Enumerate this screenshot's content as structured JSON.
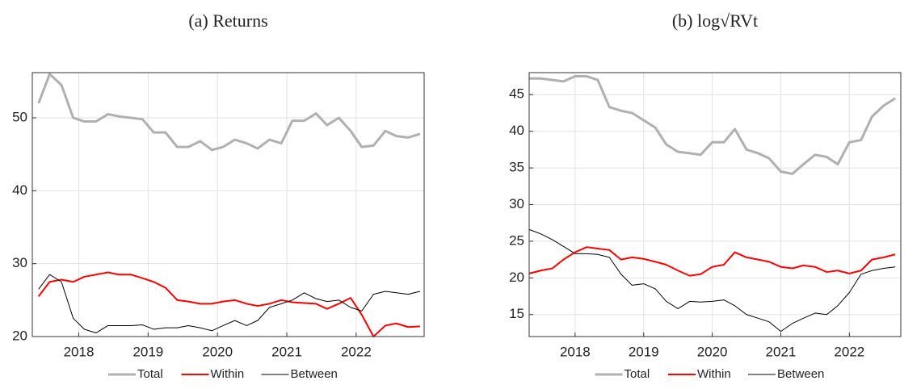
{
  "chart_data": [
    {
      "type": "line",
      "title": "(a) Returns",
      "x": [
        2017.42,
        2017.58,
        2017.75,
        2017.92,
        2018.08,
        2018.25,
        2018.42,
        2018.58,
        2018.75,
        2018.92,
        2019.08,
        2019.25,
        2019.42,
        2019.58,
        2019.75,
        2019.92,
        2020.08,
        2020.25,
        2020.42,
        2020.58,
        2020.75,
        2020.92,
        2021.08,
        2021.25,
        2021.42,
        2021.58,
        2021.75,
        2021.92,
        2022.08,
        2022.25,
        2022.42,
        2022.58,
        2022.75,
        2022.92
      ],
      "xlim": [
        2017.33,
        2022.98
      ],
      "xticks": [
        2018,
        2019,
        2020,
        2021,
        2022
      ],
      "ylim": [
        20,
        56.2
      ],
      "yticks": [
        20,
        30,
        40,
        50
      ],
      "grid": true,
      "series": [
        {
          "name": "Total",
          "color": "#b0b0b0",
          "linewidth": 3,
          "values": [
            52,
            56,
            54.5,
            50,
            49.5,
            49.5,
            50.5,
            50.2,
            50,
            49.8,
            48,
            48,
            46,
            46,
            46.8,
            45.6,
            46,
            47,
            46.5,
            45.8,
            47,
            46.5,
            49.6,
            49.6,
            50.6,
            49,
            50,
            48.2,
            46,
            46.2,
            48.2,
            47.5,
            47.3,
            47.8
          ]
        },
        {
          "name": "Within",
          "color": "#ff0000",
          "linewidth": 2,
          "values": [
            25.5,
            27.5,
            27.8,
            27.5,
            28.2,
            28.5,
            28.8,
            28.5,
            28.5,
            28,
            27.5,
            26.7,
            25,
            24.8,
            24.5,
            24.5,
            24.8,
            25,
            24.5,
            24.2,
            24.5,
            25,
            24.7,
            24.6,
            24.5,
            23.8,
            24.5,
            25.3,
            23,
            20,
            21.5,
            21.8,
            21.3,
            21.4
          ]
        },
        {
          "name": "Between",
          "color": "#000000",
          "linewidth": 1,
          "values": [
            26.5,
            28.5,
            27.5,
            22.5,
            21,
            20.5,
            21.5,
            21.5,
            21.5,
            21.6,
            21,
            21.2,
            21.2,
            21.5,
            21.2,
            20.8,
            21.5,
            22.2,
            21.5,
            22.2,
            24,
            24.5,
            25,
            26,
            25.2,
            24.8,
            25,
            24,
            23.5,
            25.8,
            26.2,
            26,
            25.8,
            26.2
          ]
        }
      ]
    },
    {
      "type": "line",
      "title": "(b) log√RVt",
      "x": [
        2017.33,
        2017.5,
        2017.67,
        2017.83,
        2018,
        2018.17,
        2018.33,
        2018.5,
        2018.67,
        2018.83,
        2019,
        2019.17,
        2019.33,
        2019.5,
        2019.67,
        2019.83,
        2020,
        2020.17,
        2020.33,
        2020.5,
        2020.67,
        2020.83,
        2021,
        2021.17,
        2021.33,
        2021.5,
        2021.67,
        2021.83,
        2022,
        2022.17,
        2022.33,
        2022.5,
        2022.67
      ],
      "xlim": [
        2017.33,
        2022.75
      ],
      "xticks": [
        2018,
        2019,
        2020,
        2021,
        2022
      ],
      "ylim": [
        12,
        48
      ],
      "yticks": [
        15,
        20,
        25,
        30,
        35,
        40,
        45
      ],
      "grid": true,
      "series": [
        {
          "name": "Total",
          "color": "#b0b0b0",
          "linewidth": 3,
          "values": [
            47.2,
            47.2,
            47,
            46.8,
            47.5,
            47.5,
            47,
            43.3,
            42.8,
            42.5,
            41.5,
            40.5,
            38.2,
            37.2,
            37,
            36.8,
            38.5,
            38.5,
            40.3,
            37.5,
            37,
            36.3,
            34.5,
            34.2,
            35.5,
            36.8,
            36.5,
            35.5,
            38.5,
            38.8,
            42,
            43.5,
            44.5
          ]
        },
        {
          "name": "Within",
          "color": "#ff0000",
          "linewidth": 2,
          "values": [
            20.6,
            21,
            21.3,
            22.5,
            23.5,
            24.2,
            24,
            23.8,
            22.5,
            22.8,
            22.6,
            22.2,
            21.8,
            21,
            20.3,
            20.5,
            21.5,
            21.8,
            23.5,
            22.8,
            22.5,
            22.2,
            21.5,
            21.3,
            21.7,
            21.5,
            20.8,
            21,
            20.6,
            21,
            22.5,
            22.8,
            23.2
          ]
        },
        {
          "name": "Between",
          "color": "#000000",
          "linewidth": 1,
          "values": [
            26.6,
            26,
            25.2,
            24.3,
            23.3,
            23.3,
            23.2,
            22.8,
            20.5,
            19,
            19.2,
            18.5,
            16.8,
            15.8,
            16.8,
            16.7,
            16.8,
            17,
            16.2,
            15,
            14.5,
            14,
            12.7,
            13.8,
            14.5,
            15.2,
            15,
            16.2,
            18,
            20.5,
            21,
            21.3,
            21.5
          ]
        }
      ]
    }
  ]
}
